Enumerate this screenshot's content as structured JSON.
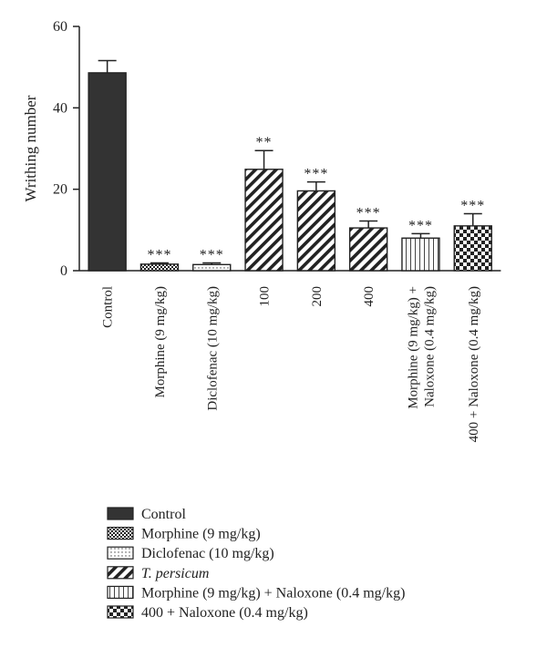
{
  "chart_data": {
    "type": "bar",
    "ylabel": "Writhing number",
    "xlabel": "",
    "ylim": [
      0,
      60
    ],
    "yticks": [
      0,
      20,
      40,
      60
    ],
    "categories": [
      [
        "Control"
      ],
      [
        "Morphine (9 mg/kg)"
      ],
      [
        "Diclofenac (10 mg/kg)"
      ],
      [
        "100"
      ],
      [
        "200"
      ],
      [
        "400"
      ],
      [
        "Morphine (9 mg/kg) +",
        "Naloxone (0.4 mg/kg)"
      ],
      [
        "400 + Naloxone (0.4 mg/kg)"
      ]
    ],
    "values": [
      48.6,
      1.6,
      1.5,
      24.9,
      19.6,
      10.5,
      8.0,
      11.0
    ],
    "errors": [
      3.0,
      0.3,
      0.4,
      4.6,
      2.2,
      1.7,
      1.1,
      3.0
    ],
    "significance": [
      "",
      "***",
      "***",
      "**",
      "***",
      "***",
      "***",
      "***"
    ],
    "patterns": [
      "solid",
      "crosshatch",
      "dots",
      "diagonal",
      "diagonal",
      "diagonal",
      "vertical",
      "checker"
    ],
    "legend": [
      {
        "label": "Control",
        "pattern": "solid",
        "italic": false
      },
      {
        "label": "Morphine (9 mg/kg)",
        "pattern": "crosshatch",
        "italic": false
      },
      {
        "label": "Diclofenac (10 mg/kg)",
        "pattern": "dots",
        "italic": false
      },
      {
        "label": "T. persicum",
        "pattern": "diagonal",
        "italic": true
      },
      {
        "label": "Morphine (9 mg/kg) + Naloxone (0.4 mg/kg)",
        "pattern": "vertical",
        "italic": false
      },
      {
        "label": "400 + Naloxone (0.4 mg/kg)",
        "pattern": "checker",
        "italic": false
      }
    ],
    "legend_placement": "bottom-left",
    "grid": false,
    "colors": {
      "bar_fill": "#333333",
      "stroke": "#222222",
      "background": "#ffffff"
    }
  }
}
